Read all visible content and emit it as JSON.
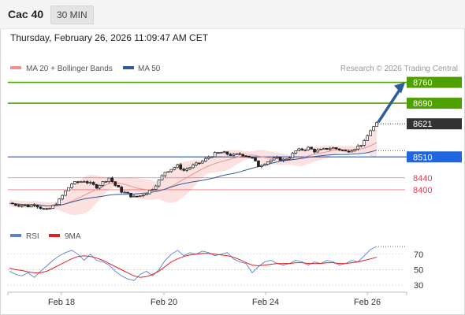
{
  "header": {
    "instrument": "Cac 40",
    "timeframe": "30 MIN",
    "datetime": "Thursday, February 26, 2026 11:09:47 AM CET"
  },
  "legend": {
    "items": [
      {
        "label": "MA 20 + Bollinger Bands",
        "color": "#f08f8f"
      },
      {
        "label": "MA 50",
        "color": "#2f5c99"
      }
    ],
    "credit": "Research © 2026 Trading Central"
  },
  "rsi_legend": {
    "items": [
      {
        "label": "RSI",
        "color": "#5b7fd3"
      },
      {
        "label": "9MA",
        "color": "#e02020"
      }
    ]
  },
  "chart_data": [
    {
      "type": "candlestick",
      "title": "Cac 40",
      "x_tick_labels": [
        "Feb 18",
        "Feb 20",
        "Feb 24",
        "Feb 26"
      ],
      "ylim": [
        8310,
        8780
      ],
      "last_price": 8621,
      "levels": [
        {
          "label": "8760",
          "value": 8760,
          "color": "#4ea000",
          "style": "resistance"
        },
        {
          "label": "8690",
          "value": 8690,
          "color": "#4ea000",
          "style": "resistance"
        },
        {
          "label": "8621",
          "value": 8621,
          "color": "#333333",
          "style": "last"
        },
        {
          "label": "8510",
          "value": 8510,
          "color": "#1f66e0",
          "style": "pivot"
        },
        {
          "label": "8440",
          "value": 8440,
          "color": "#e4414f",
          "style": "support"
        },
        {
          "label": "8400",
          "value": 8400,
          "color": "#e4414f",
          "style": "support"
        }
      ],
      "close_path": [
        8355,
        8350,
        8348,
        8345,
        8352,
        8340,
        8330,
        8345,
        8365,
        8395,
        8420,
        8425,
        8430,
        8420,
        8410,
        8425,
        8440,
        8415,
        8395,
        8385,
        8375,
        8380,
        8390,
        8405,
        8430,
        8460,
        8470,
        8480,
        8465,
        8475,
        8485,
        8495,
        8510,
        8520,
        8525,
        8520,
        8515,
        8520,
        8515,
        8505,
        8480,
        8490,
        8500,
        8505,
        8500,
        8510,
        8530,
        8535,
        8540,
        8530,
        8532,
        8538,
        8540,
        8535,
        8528,
        8535,
        8545,
        8560,
        8600,
        8621
      ],
      "projection": {
        "from": 8621,
        "to": 8760,
        "color": "#2f5c99"
      },
      "series": [
        {
          "name": "MA 20 + Bollinger Bands",
          "color": "#f08f8f"
        },
        {
          "name": "MA 50",
          "color": "#2f5c99"
        }
      ]
    },
    {
      "type": "line",
      "ylim": [
        20,
        85
      ],
      "y_ticks": [
        70,
        50,
        30
      ],
      "series": [
        {
          "name": "RSI",
          "color": "#5b7fd3",
          "values": [
            48,
            44,
            42,
            46,
            40,
            48,
            55,
            62,
            68,
            72,
            75,
            70,
            62,
            70,
            62,
            60,
            56,
            48,
            42,
            38,
            36,
            44,
            48,
            42,
            50,
            62,
            70,
            75,
            68,
            72,
            70,
            74,
            72,
            68,
            70,
            72,
            64,
            60,
            58,
            46,
            54,
            60,
            62,
            58,
            56,
            58,
            62,
            60,
            56,
            60,
            58,
            62,
            60,
            56,
            58,
            62,
            60,
            68,
            76,
            80
          ]
        },
        {
          "name": "9MA",
          "color": "#e02020",
          "values": [
            52,
            50,
            49,
            47,
            46,
            46,
            48,
            52,
            56,
            60,
            64,
            67,
            68,
            67,
            65,
            62,
            58,
            54,
            50,
            46,
            42,
            40,
            41,
            44,
            48,
            54,
            60,
            64,
            67,
            69,
            70,
            71,
            71,
            70,
            69,
            68,
            66,
            63,
            59,
            56,
            55,
            56,
            57,
            58,
            58,
            58,
            59,
            59,
            58,
            58,
            58,
            59,
            59,
            58,
            58,
            59,
            60,
            62,
            64,
            66
          ]
        }
      ]
    }
  ]
}
